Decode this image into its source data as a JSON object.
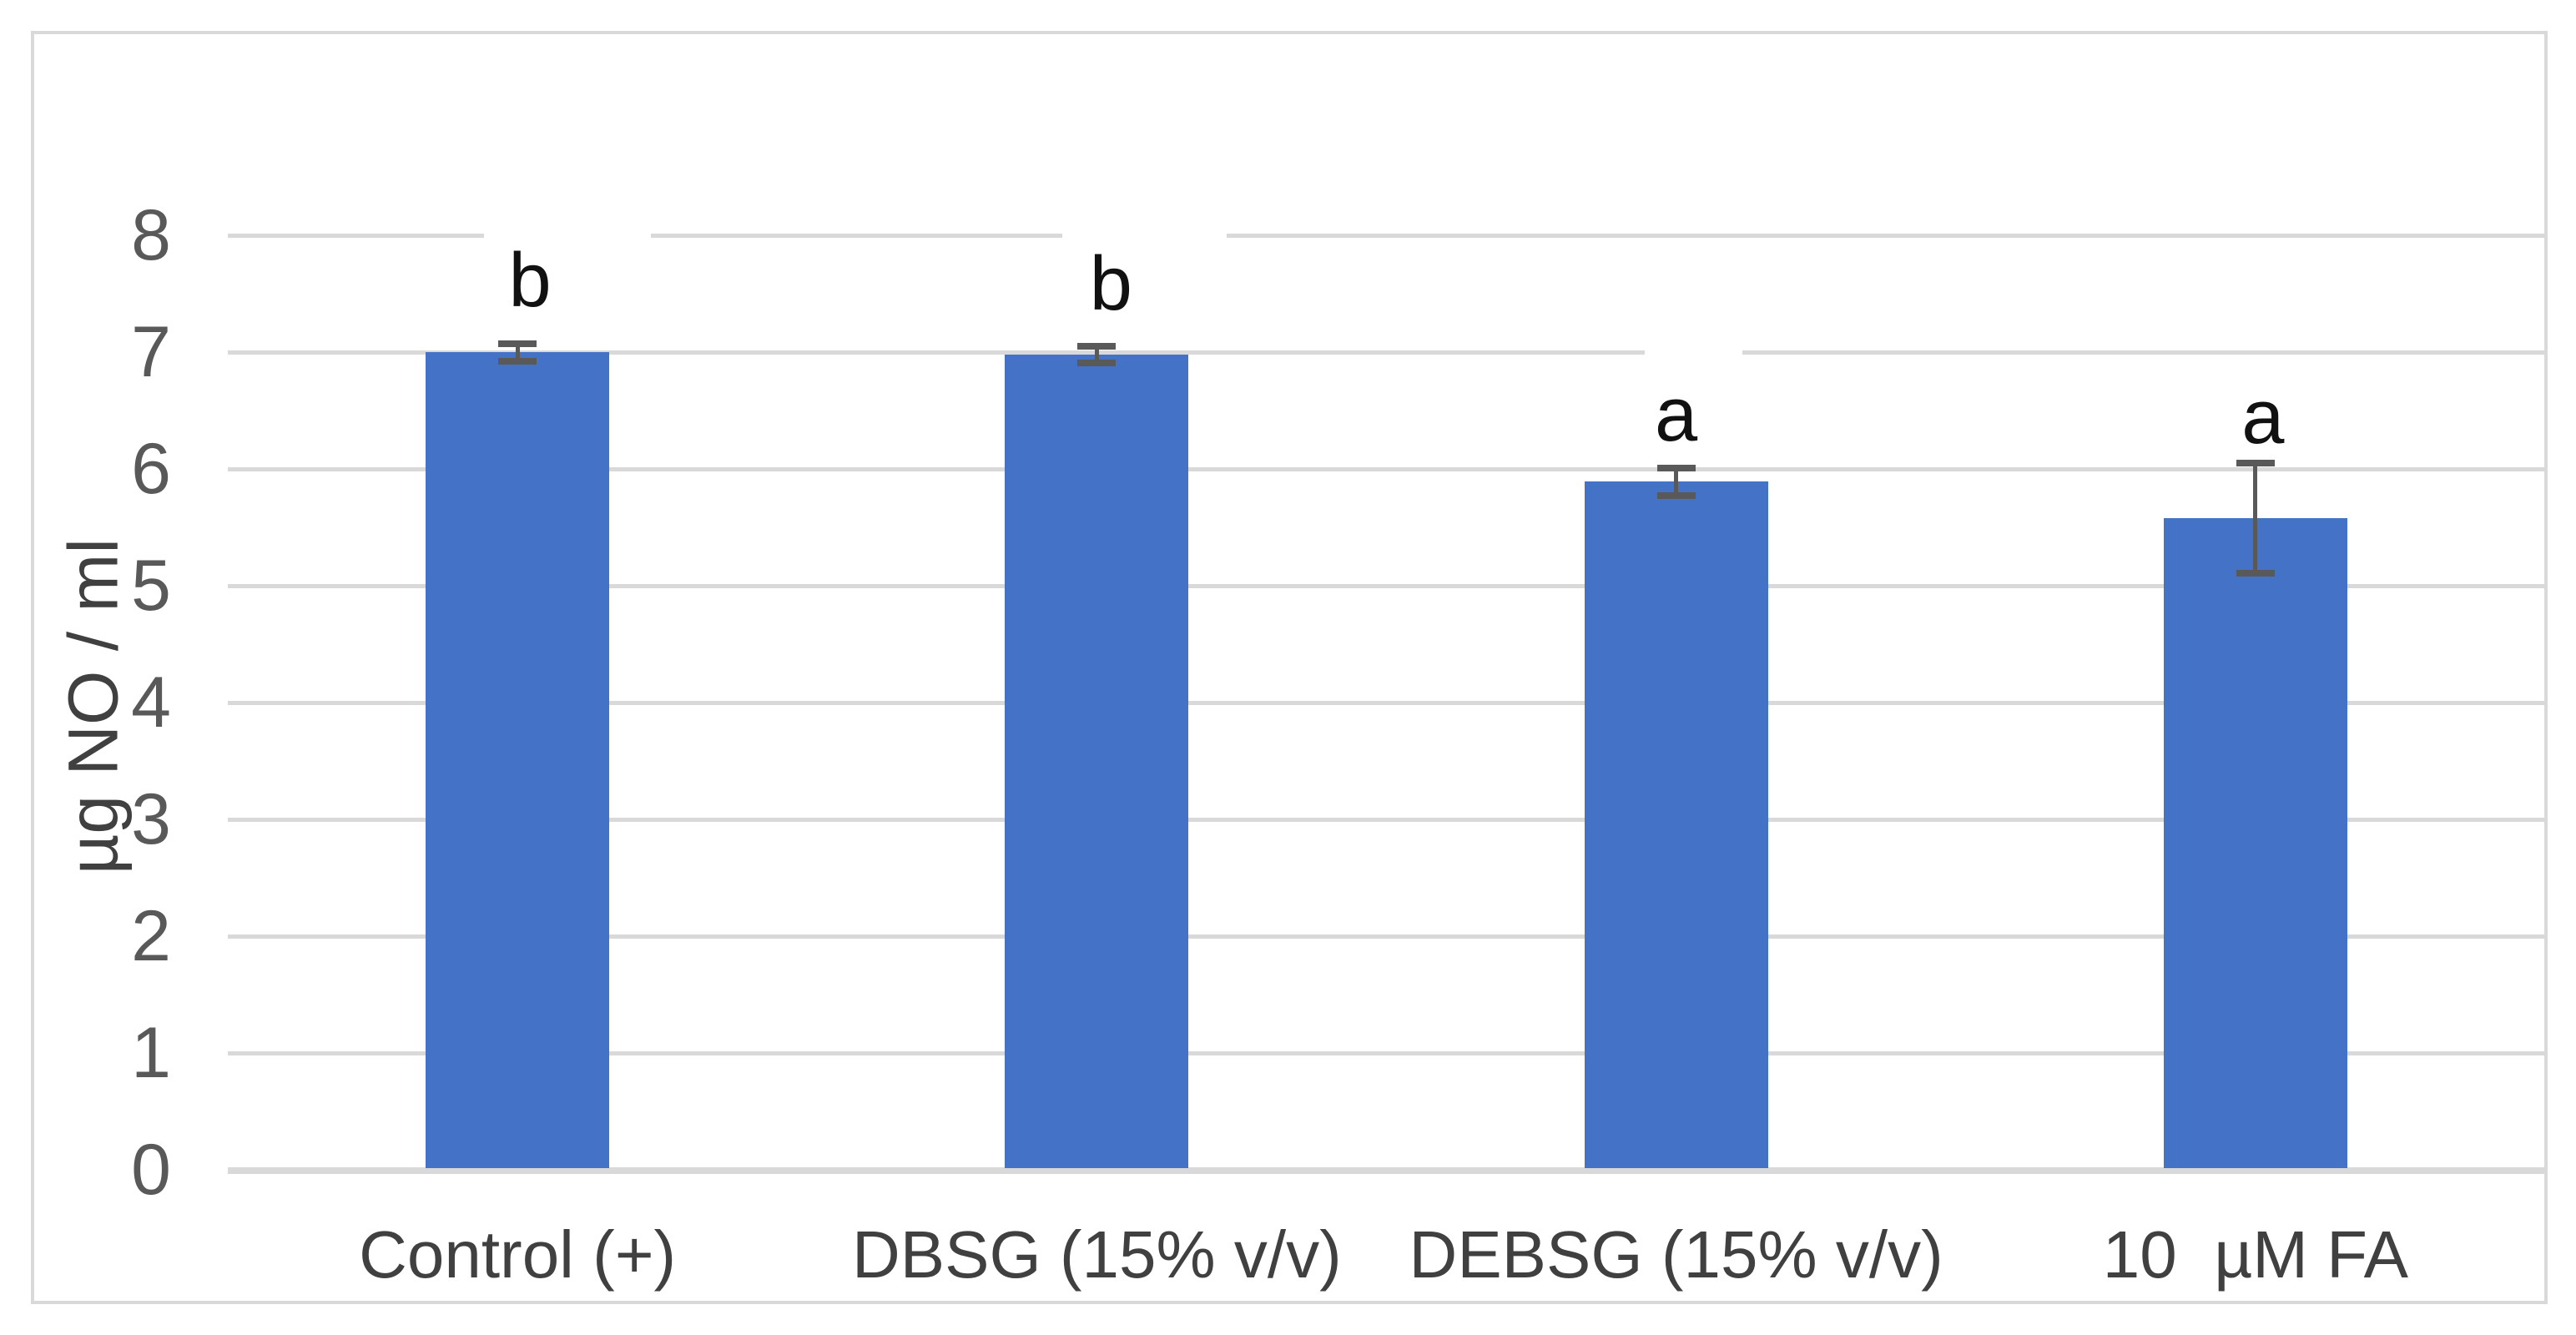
{
  "chart_data": {
    "type": "bar",
    "title": "",
    "xlabel": "",
    "ylabel": "µg NO / ml",
    "categories": [
      "Control (+)",
      "DBSG (15% v/v)",
      "DEBSG (15% v/v)",
      "10  µM FA"
    ],
    "values": [
      7.0,
      6.98,
      5.89,
      5.58
    ],
    "error_bars": [
      0.075,
      0.07,
      0.12,
      0.47
    ],
    "sig_letters": [
      "b",
      "b",
      "a",
      "a"
    ],
    "yticks": [
      0,
      1,
      2,
      3,
      4,
      5,
      6,
      7,
      8
    ],
    "ylim": [
      0,
      8
    ],
    "grid": "horizontal",
    "legend": "none",
    "colors": {
      "bar": "#4472C6",
      "gridline": "#D9D9D9",
      "error_bar": "#595959",
      "tick_label": "#595959",
      "axis_label": "#404040",
      "sig_letter": "#111111",
      "border": "#D9D9D9"
    }
  }
}
